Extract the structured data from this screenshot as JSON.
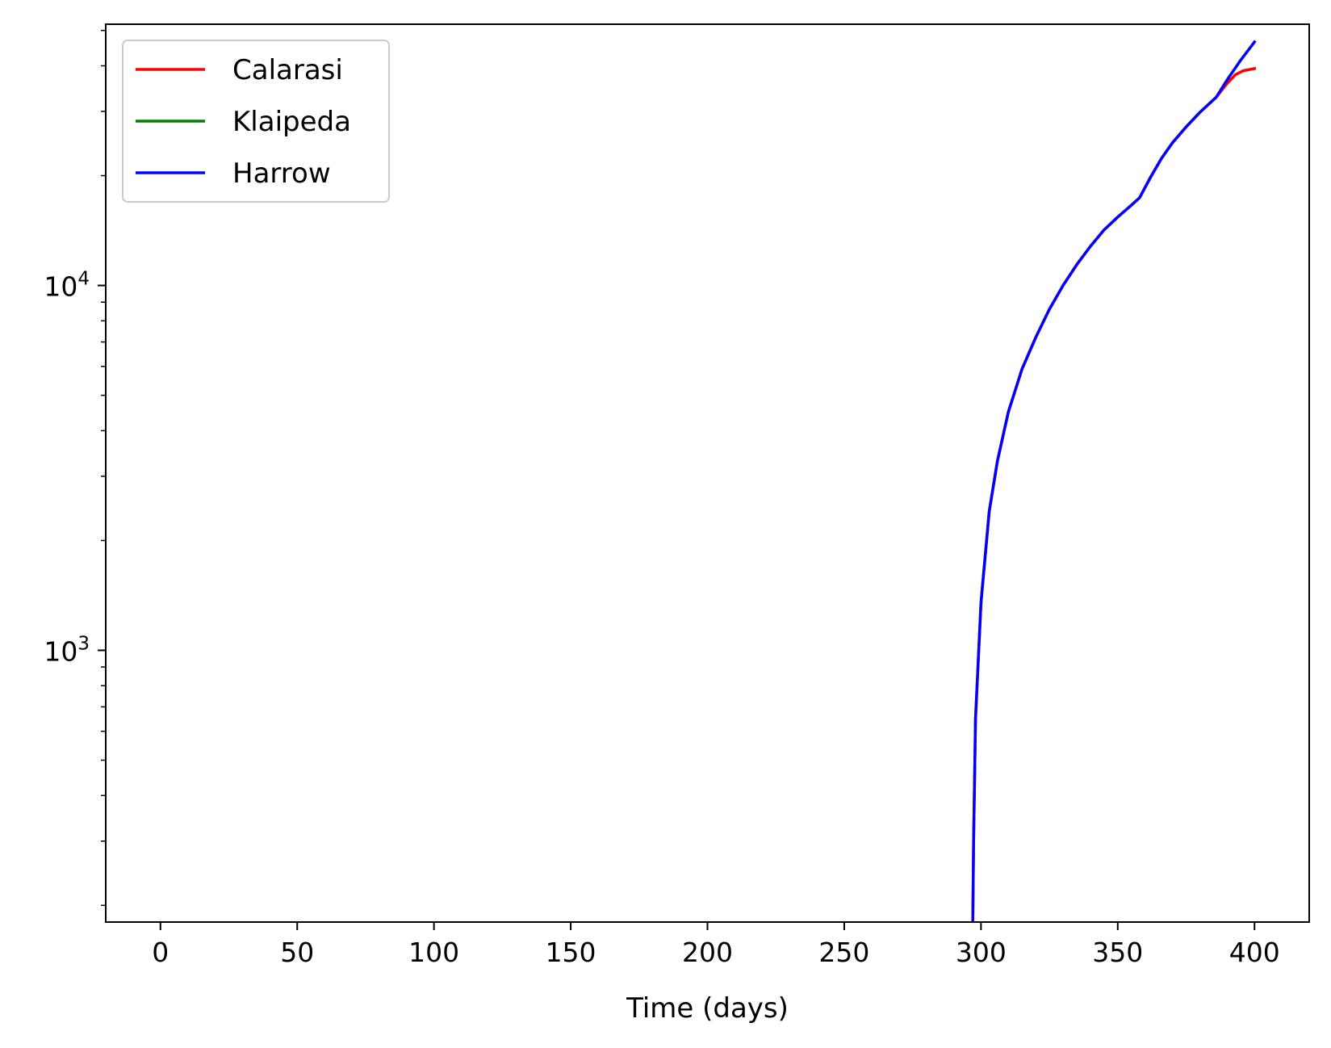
{
  "chart_data": {
    "type": "line",
    "title": "",
    "xlabel": "Time (days)",
    "ylabel": "",
    "xlim": [
      -20,
      420
    ],
    "ylim": [
      180,
      52000
    ],
    "yscale": "log",
    "grid": false,
    "legend_position": "top-left",
    "x_ticks": [
      0,
      50,
      100,
      150,
      200,
      250,
      300,
      350,
      400
    ],
    "x_tick_labels": [
      "0",
      "50",
      "100",
      "150",
      "200",
      "250",
      "300",
      "350",
      "400"
    ],
    "y_ticks": [
      1000,
      10000
    ],
    "y_tick_labels": [
      {
        "base": "10",
        "exp": "3"
      },
      {
        "base": "10",
        "exp": "4"
      }
    ],
    "series": [
      {
        "name": "Calarasi",
        "color": "#ff0000",
        "points": [
          [
            297,
            180
          ],
          [
            297.3,
            300
          ],
          [
            298,
            650
          ],
          [
            300,
            1350
          ],
          [
            303,
            2400
          ],
          [
            306,
            3300
          ],
          [
            310,
            4500
          ],
          [
            315,
            5900
          ],
          [
            320,
            7200
          ],
          [
            325,
            8600
          ],
          [
            330,
            10000
          ],
          [
            335,
            11400
          ],
          [
            340,
            12800
          ],
          [
            345,
            14200
          ],
          [
            350,
            15400
          ],
          [
            355,
            16600
          ],
          [
            358,
            17400
          ],
          [
            362,
            19800
          ],
          [
            366,
            22300
          ],
          [
            370,
            24600
          ],
          [
            375,
            27200
          ],
          [
            380,
            29800
          ],
          [
            386,
            32800
          ],
          [
            390,
            35800
          ],
          [
            393,
            37800
          ],
          [
            396,
            38800
          ],
          [
            400,
            39300
          ]
        ]
      },
      {
        "name": "Klaipeda",
        "color": "#008000",
        "points": []
      },
      {
        "name": "Harrow",
        "color": "#0000ff",
        "points": [
          [
            297,
            180
          ],
          [
            297.3,
            300
          ],
          [
            298,
            650
          ],
          [
            300,
            1350
          ],
          [
            303,
            2400
          ],
          [
            306,
            3300
          ],
          [
            310,
            4500
          ],
          [
            315,
            5900
          ],
          [
            320,
            7200
          ],
          [
            325,
            8600
          ],
          [
            330,
            10000
          ],
          [
            335,
            11400
          ],
          [
            340,
            12800
          ],
          [
            345,
            14200
          ],
          [
            350,
            15400
          ],
          [
            355,
            16600
          ],
          [
            358,
            17400
          ],
          [
            362,
            19800
          ],
          [
            366,
            22300
          ],
          [
            370,
            24600
          ],
          [
            375,
            27200
          ],
          [
            380,
            29800
          ],
          [
            386,
            32800
          ],
          [
            390,
            36600
          ],
          [
            395,
            41500
          ],
          [
            400,
            46500
          ]
        ]
      }
    ]
  }
}
